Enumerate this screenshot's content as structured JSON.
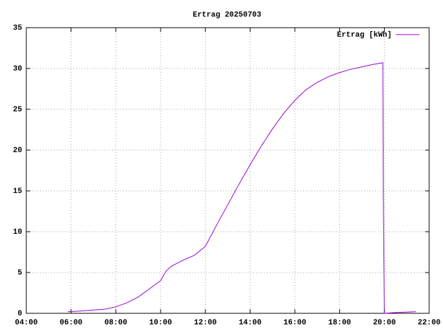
{
  "chart_data": {
    "type": "line",
    "title": "Ertrag 20250703",
    "x": [
      5.86,
      6.0,
      6.5,
      7.0,
      7.5,
      8.0,
      8.5,
      9.0,
      9.5,
      10.0,
      10.25,
      10.5,
      11.0,
      11.5,
      12.0,
      12.5,
      13.0,
      13.5,
      14.0,
      14.5,
      15.0,
      15.5,
      16.0,
      16.5,
      17.0,
      17.5,
      18.0,
      18.5,
      19.0,
      19.5,
      19.93,
      19.95,
      20.0,
      20.5,
      21.4
    ],
    "series": [
      {
        "name": "Ertrag [kWh]",
        "color": "#9400d3",
        "values": [
          0.2,
          0.2,
          0.3,
          0.4,
          0.5,
          0.8,
          1.3,
          2.0,
          3.0,
          4.0,
          5.2,
          5.8,
          6.5,
          7.1,
          8.2,
          10.8,
          13.3,
          15.8,
          18.2,
          20.5,
          22.6,
          24.5,
          26.1,
          27.4,
          28.3,
          29.0,
          29.5,
          29.9,
          30.2,
          30.5,
          30.7,
          15.0,
          0,
          0.1,
          0.2
        ]
      }
    ],
    "xlim": [
      4,
      22
    ],
    "xticks": [
      {
        "value": 4,
        "label": "04:00"
      },
      {
        "value": 6,
        "label": "06:00"
      },
      {
        "value": 8,
        "label": "08:00"
      },
      {
        "value": 10,
        "label": "10:00"
      },
      {
        "value": 12,
        "label": "12:00"
      },
      {
        "value": 14,
        "label": "14:00"
      },
      {
        "value": 16,
        "label": "16:00"
      },
      {
        "value": 18,
        "label": "18:00"
      },
      {
        "value": 20,
        "label": "20:00"
      },
      {
        "value": 22,
        "label": "22:00"
      }
    ],
    "ylim": [
      0,
      35
    ],
    "yticks": [
      0,
      5,
      10,
      15,
      20,
      25,
      30,
      35
    ],
    "grid": true,
    "legend": "top-right"
  }
}
